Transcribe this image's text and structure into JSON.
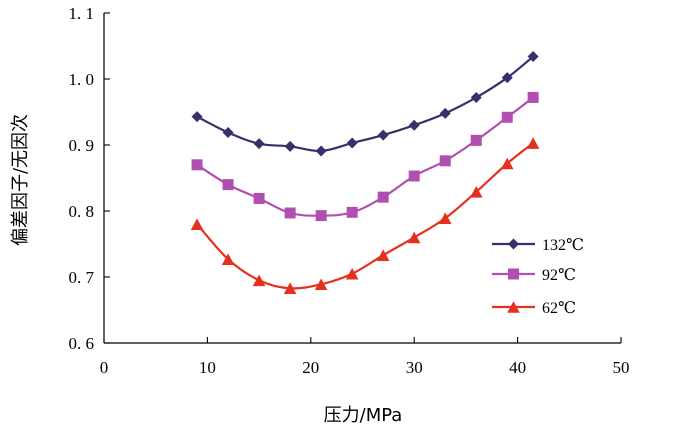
{
  "chart_data": {
    "type": "line",
    "title": "",
    "xlabel": "压力/MPa",
    "ylabel": "偏差因子/无因次",
    "xlim": [
      0,
      50
    ],
    "ylim": [
      0.6,
      1.1
    ],
    "xticks": [
      0,
      10,
      20,
      30,
      40,
      50
    ],
    "xtick_labels": [
      "0",
      "10",
      "20",
      "30",
      "40",
      "50"
    ],
    "yticks": [
      0.6,
      0.7,
      0.8,
      0.9,
      1.0,
      1.1
    ],
    "ytick_labels": [
      "0. 6",
      "0. 7",
      "0. 8",
      "0. 9",
      "1. 0",
      "1. 1"
    ],
    "grid": false,
    "legend_position": "right",
    "series": [
      {
        "name": "132℃",
        "color": "#3a2e6b",
        "marker": "diamond",
        "x": [
          9,
          12,
          15,
          18,
          21,
          24,
          27,
          30,
          33,
          36,
          39,
          41.5
        ],
        "y": [
          0.943,
          0.919,
          0.902,
          0.898,
          0.891,
          0.903,
          0.915,
          0.93,
          0.948,
          0.972,
          1.002,
          1.034
        ]
      },
      {
        "name": "92℃",
        "color": "#b04fb0",
        "marker": "square",
        "x": [
          9,
          12,
          15,
          18,
          21,
          24,
          27,
          30,
          33,
          36,
          39,
          41.5
        ],
        "y": [
          0.87,
          0.84,
          0.819,
          0.797,
          0.793,
          0.798,
          0.821,
          0.853,
          0.876,
          0.907,
          0.942,
          0.972
        ]
      },
      {
        "name": "62℃",
        "color": "#e53020",
        "marker": "triangle",
        "x": [
          9,
          12,
          15,
          18,
          21,
          24,
          27,
          30,
          33,
          36,
          39,
          41.5
        ],
        "y": [
          0.78,
          0.727,
          0.695,
          0.683,
          0.689,
          0.705,
          0.733,
          0.76,
          0.789,
          0.829,
          0.872,
          0.903
        ]
      }
    ]
  }
}
